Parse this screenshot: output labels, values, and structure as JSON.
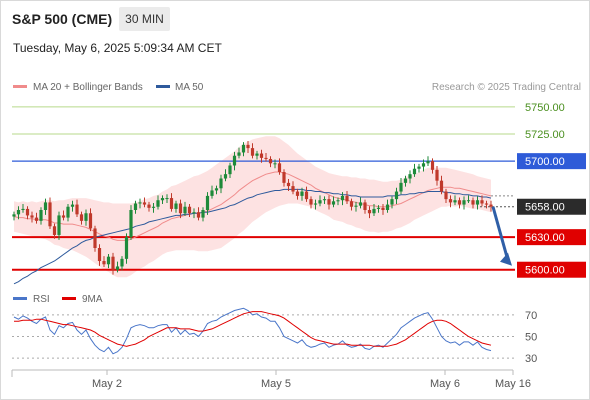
{
  "header": {
    "title": "S&P 500 (CME)",
    "timeframe": "30 MIN",
    "datetime": "Tuesday, May 6, 2025 5:09:34 AM CET"
  },
  "chart_data": [
    {
      "type": "line",
      "title": "",
      "legend": [
        {
          "name": "MA 20 + Bollinger Bands",
          "color": "#f08b8b"
        },
        {
          "name": "MA 50",
          "color": "#2e5a9c"
        }
      ],
      "legend_position": "top-left",
      "credit": "Research © 2025 Trading Central",
      "y_axis": {
        "position": "right",
        "range": [
          5585,
          5760
        ]
      },
      "x_ticks": [
        "May 2",
        "May 5",
        "May 6",
        "May 16"
      ],
      "levels": [
        {
          "value": 5750,
          "label": "5750.00",
          "type": "target",
          "color": "#b7d98b",
          "text_color": "#4a8f1f"
        },
        {
          "value": 5725,
          "label": "5725.00",
          "type": "target",
          "color": "#b7d98b",
          "text_color": "#4a8f1f"
        },
        {
          "value": 5700,
          "label": "5700.00",
          "type": "pivot",
          "color": "#2e5bd8"
        },
        {
          "value": 5658,
          "label": "5658.00",
          "type": "last",
          "color": "#333333"
        },
        {
          "value": 5630,
          "label": "5630.00",
          "type": "support",
          "color": "#e00000"
        },
        {
          "value": 5600,
          "label": "5600.00",
          "type": "support",
          "color": "#e00000"
        }
      ],
      "series": [
        {
          "name": "price",
          "type": "candlestick",
          "close": [
            5651,
            5655,
            5656,
            5650,
            5648,
            5645,
            5655,
            5662,
            5640,
            5632,
            5650,
            5648,
            5658,
            5660,
            5651,
            5645,
            5652,
            5638,
            5620,
            5608,
            5605,
            5612,
            5600,
            5603,
            5610,
            5630,
            5655,
            5661,
            5662,
            5660,
            5657,
            5658,
            5664,
            5666,
            5666,
            5656,
            5661,
            5652,
            5658,
            5652,
            5653,
            5648,
            5655,
            5668,
            5673,
            5675,
            5684,
            5688,
            5696,
            5705,
            5708,
            5715,
            5712,
            5705,
            5707,
            5703,
            5702,
            5698,
            5698,
            5690,
            5680,
            5677,
            5672,
            5668,
            5672,
            5665,
            5660,
            5661,
            5664,
            5665,
            5660,
            5663,
            5664,
            5668,
            5663,
            5658,
            5659,
            5662,
            5655,
            5652,
            5656,
            5657,
            5655,
            5660,
            5665,
            5672,
            5680,
            5684,
            5688,
            5693,
            5695,
            5698,
            5700,
            5692,
            5682,
            5672,
            5665,
            5662,
            5664,
            5660,
            5664,
            5664,
            5660,
            5664,
            5661,
            5660,
            5658
          ]
        },
        {
          "name": "MA 20",
          "values": [
            5649,
            5648,
            5648,
            5647,
            5647,
            5646,
            5646,
            5646,
            5645,
            5643,
            5643,
            5642,
            5642,
            5642,
            5641,
            5640,
            5639,
            5637,
            5635,
            5633,
            5631,
            5630,
            5628,
            5627,
            5627,
            5627,
            5628,
            5630,
            5632,
            5634,
            5636,
            5638,
            5640,
            5643,
            5645,
            5647,
            5648,
            5649,
            5650,
            5651,
            5652,
            5652,
            5653,
            5654,
            5656,
            5658,
            5660,
            5663,
            5666,
            5669,
            5673,
            5676,
            5679,
            5682,
            5684,
            5686,
            5688,
            5689,
            5690,
            5690,
            5689,
            5688,
            5686,
            5684,
            5682,
            5680,
            5678,
            5675,
            5673,
            5671,
            5669,
            5667,
            5666,
            5665,
            5664,
            5663,
            5662,
            5661,
            5660,
            5659,
            5659,
            5658,
            5658,
            5658,
            5659,
            5660,
            5661,
            5663,
            5665,
            5667,
            5669,
            5671,
            5673,
            5674,
            5675,
            5676,
            5676,
            5676,
            5675,
            5675,
            5674,
            5673,
            5672,
            5671,
            5670,
            5669,
            5668
          ]
        },
        {
          "name": "MA 50",
          "values": [
            5587,
            5589,
            5592,
            5594,
            5597,
            5599,
            5602,
            5604,
            5606,
            5608,
            5611,
            5614,
            5617,
            5620,
            5622,
            5625,
            5627,
            5628,
            5630,
            5631,
            5632,
            5633,
            5634,
            5635,
            5636,
            5637,
            5638,
            5640,
            5641,
            5642,
            5644,
            5645,
            5646,
            5647,
            5648,
            5649,
            5650,
            5650,
            5651,
            5651,
            5652,
            5652,
            5653,
            5653,
            5654,
            5655,
            5656,
            5657,
            5659,
            5660,
            5662,
            5664,
            5666,
            5667,
            5669,
            5670,
            5671,
            5672,
            5673,
            5673,
            5674,
            5674,
            5674,
            5674,
            5674,
            5673,
            5673,
            5672,
            5672,
            5671,
            5671,
            5670,
            5670,
            5669,
            5669,
            5668,
            5668,
            5667,
            5667,
            5667,
            5667,
            5667,
            5667,
            5668,
            5668,
            5668,
            5669,
            5669,
            5670,
            5670,
            5671,
            5671,
            5672,
            5672,
            5672,
            5672,
            5671,
            5671,
            5670,
            5670,
            5669,
            5669,
            5668,
            5668,
            5667,
            5667,
            5666
          ]
        },
        {
          "name": "BB band half-width",
          "values": [
            14,
            14,
            15,
            15,
            16,
            16,
            17,
            18,
            19,
            20,
            21,
            22,
            23,
            24,
            25,
            26,
            27,
            28,
            29,
            30,
            31,
            32,
            33,
            34,
            34,
            34,
            33,
            32,
            31,
            31,
            30,
            30,
            29,
            29,
            29,
            30,
            30,
            31,
            32,
            33,
            34,
            35,
            36,
            37,
            38,
            39,
            40,
            40,
            40,
            40,
            40,
            40,
            39,
            38,
            37,
            36,
            35,
            34,
            33,
            31,
            29,
            27,
            25,
            23,
            22,
            21,
            20,
            20,
            20,
            20,
            20,
            21,
            21,
            21,
            22,
            22,
            23,
            23,
            24,
            24,
            24,
            24,
            23,
            23,
            23,
            22,
            22,
            22,
            22,
            21,
            21,
            21,
            21,
            20,
            19,
            18,
            18,
            17,
            17,
            16,
            16,
            16,
            16,
            15,
            15,
            15,
            15
          ]
        }
      ],
      "projection": {
        "from": 5658,
        "to": 5600,
        "color": "#2f5fa7"
      }
    },
    {
      "type": "line",
      "legend": [
        {
          "name": "RSI",
          "color": "#4a76c9"
        },
        {
          "name": "9MA",
          "color": "#e00000"
        }
      ],
      "y_axis": {
        "position": "right",
        "range": [
          20,
          80
        ],
        "ticks": [
          70,
          50,
          30
        ]
      },
      "series": [
        {
          "name": "RSI",
          "values": [
            68,
            66,
            69,
            67,
            64,
            62,
            66,
            68,
            56,
            52,
            60,
            58,
            62,
            63,
            56,
            52,
            56,
            48,
            42,
            38,
            36,
            40,
            34,
            36,
            40,
            48,
            58,
            60,
            61,
            60,
            58,
            58,
            60,
            61,
            61,
            54,
            58,
            52,
            56,
            52,
            53,
            50,
            55,
            62,
            64,
            65,
            68,
            70,
            72,
            74,
            75,
            76,
            74,
            70,
            71,
            68,
            67,
            64,
            64,
            58,
            50,
            48,
            46,
            44,
            47,
            42,
            40,
            41,
            43,
            44,
            40,
            42,
            43,
            46,
            42,
            40,
            41,
            43,
            39,
            38,
            41,
            42,
            40,
            44,
            48,
            52,
            58,
            61,
            64,
            67,
            69,
            71,
            72,
            66,
            58,
            50,
            46,
            44,
            45,
            42,
            45,
            45,
            42,
            45,
            40,
            38,
            37
          ]
        },
        {
          "name": "9MA",
          "values": [
            64,
            64,
            65,
            65,
            65,
            66,
            66,
            65,
            64,
            63,
            62,
            61,
            61,
            60,
            59,
            58,
            57,
            56,
            54,
            51,
            49,
            47,
            45,
            43,
            42,
            41,
            42,
            43,
            45,
            47,
            50,
            52,
            54,
            56,
            58,
            58,
            58,
            57,
            57,
            57,
            56,
            55,
            55,
            56,
            57,
            59,
            61,
            63,
            65,
            67,
            69,
            71,
            72,
            73,
            73,
            73,
            72,
            71,
            70,
            69,
            67,
            64,
            61,
            58,
            55,
            52,
            49,
            47,
            46,
            45,
            44,
            43,
            43,
            43,
            43,
            42,
            42,
            42,
            42,
            42,
            41,
            41,
            41,
            41,
            42,
            43,
            45,
            47,
            50,
            53,
            56,
            59,
            62,
            64,
            65,
            65,
            64,
            62,
            59,
            56,
            53,
            50,
            48,
            46,
            44,
            43,
            42
          ]
        }
      ]
    }
  ]
}
